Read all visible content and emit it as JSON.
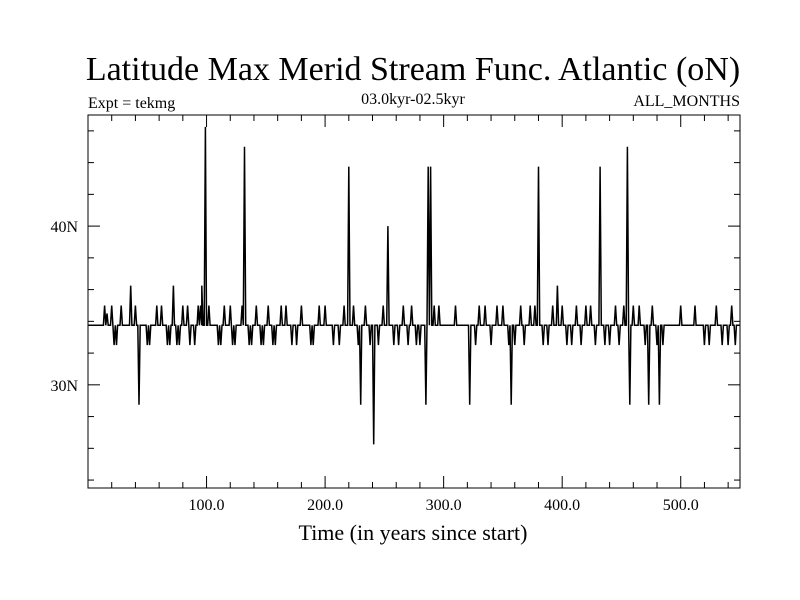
{
  "chart_data": {
    "type": "line",
    "title": "Latitude Max Merid Stream Func. Atlantic (oN)",
    "subtitle_left": "Expt = tekmg",
    "subtitle_center": "03.0kyr-02.5kyr",
    "subtitle_right": "ALL_MONTHS",
    "xlabel": "Time (in years since start)",
    "ylabel": "",
    "xlim": [
      0,
      550
    ],
    "ylim": [
      23.5,
      47
    ],
    "xticks": [
      100,
      200,
      300,
      400,
      500
    ],
    "xtick_labels": [
      "100.0",
      "200.0",
      "300.0",
      "400.0",
      "500.0"
    ],
    "yticks": [
      30,
      40
    ],
    "ytick_labels": [
      "30N",
      "40N"
    ],
    "grid": false,
    "baseline": 33.75,
    "series": [
      {
        "name": "",
        "events": [
          [
            14,
            35.0
          ],
          [
            16,
            34.5
          ],
          [
            20,
            35.0
          ],
          [
            22,
            32.5
          ],
          [
            24,
            32.5
          ],
          [
            28,
            35.0
          ],
          [
            36,
            36.25
          ],
          [
            40,
            35.0
          ],
          [
            43,
            28.75
          ],
          [
            50,
            32.5
          ],
          [
            52,
            32.5
          ],
          [
            58,
            35.0
          ],
          [
            62,
            35.0
          ],
          [
            67,
            32.5
          ],
          [
            69,
            32.5
          ],
          [
            72,
            36.25
          ],
          [
            75,
            32.5
          ],
          [
            77,
            32.5
          ],
          [
            80,
            35.0
          ],
          [
            84,
            35.0
          ],
          [
            86,
            32.5
          ],
          [
            90,
            32.5
          ],
          [
            93,
            35.0
          ],
          [
            95,
            35.0
          ],
          [
            96,
            36.25
          ],
          [
            99,
            46.25
          ],
          [
            102,
            35.0
          ],
          [
            110,
            32.5
          ],
          [
            112,
            32.5
          ],
          [
            115,
            35.0
          ],
          [
            120,
            35.0
          ],
          [
            122,
            32.5
          ],
          [
            124,
            32.5
          ],
          [
            130,
            35.0
          ],
          [
            132,
            45.0
          ],
          [
            136,
            32.5
          ],
          [
            138,
            32.5
          ],
          [
            142,
            35.0
          ],
          [
            146,
            32.5
          ],
          [
            148,
            32.5
          ],
          [
            152,
            35.0
          ],
          [
            156,
            32.5
          ],
          [
            158,
            32.5
          ],
          [
            163,
            35.0
          ],
          [
            167,
            35.0
          ],
          [
            172,
            32.5
          ],
          [
            176,
            32.5
          ],
          [
            180,
            35.0
          ],
          [
            188,
            32.5
          ],
          [
            190,
            32.5
          ],
          [
            195,
            35.0
          ],
          [
            200,
            35.0
          ],
          [
            207,
            32.5
          ],
          [
            212,
            32.5
          ],
          [
            216,
            35.0
          ],
          [
            220,
            43.75
          ],
          [
            224,
            35.0
          ],
          [
            228,
            32.5
          ],
          [
            230,
            28.75
          ],
          [
            234,
            35.0
          ],
          [
            238,
            32.5
          ],
          [
            241,
            26.25
          ],
          [
            245,
            32.5
          ],
          [
            249,
            35.0
          ],
          [
            253,
            40.0
          ],
          [
            258,
            32.5
          ],
          [
            262,
            32.5
          ],
          [
            266,
            35.0
          ],
          [
            270,
            32.5
          ],
          [
            273,
            35.0
          ],
          [
            277,
            32.5
          ],
          [
            280,
            32.5
          ],
          [
            285,
            28.75
          ],
          [
            287,
            43.75
          ],
          [
            289,
            43.75
          ],
          [
            292,
            35.0
          ],
          [
            296,
            35.0
          ],
          [
            310,
            35.0
          ],
          [
            322,
            28.75
          ],
          [
            327,
            32.5
          ],
          [
            330,
            35.0
          ],
          [
            335,
            35.0
          ],
          [
            340,
            32.5
          ],
          [
            345,
            35.0
          ],
          [
            350,
            35.0
          ],
          [
            355,
            32.5
          ],
          [
            357,
            28.75
          ],
          [
            360,
            32.5
          ],
          [
            365,
            35.0
          ],
          [
            368,
            32.5
          ],
          [
            373,
            35.0
          ],
          [
            377,
            35.0
          ],
          [
            380,
            43.75
          ],
          [
            384,
            32.5
          ],
          [
            388,
            32.5
          ],
          [
            392,
            35.0
          ],
          [
            396,
            36.25
          ],
          [
            400,
            35.0
          ],
          [
            404,
            32.5
          ],
          [
            408,
            32.5
          ],
          [
            412,
            35.0
          ],
          [
            416,
            32.5
          ],
          [
            420,
            35.0
          ],
          [
            424,
            35.0
          ],
          [
            428,
            32.5
          ],
          [
            432,
            43.75
          ],
          [
            436,
            32.5
          ],
          [
            440,
            32.5
          ],
          [
            445,
            35.0
          ],
          [
            448,
            32.5
          ],
          [
            452,
            35.0
          ],
          [
            455,
            45.0
          ],
          [
            457,
            28.75
          ],
          [
            460,
            35.0
          ],
          [
            465,
            35.0
          ],
          [
            470,
            32.5
          ],
          [
            473,
            28.75
          ],
          [
            476,
            35.0
          ],
          [
            480,
            32.5
          ],
          [
            482,
            28.75
          ],
          [
            485,
            32.5
          ],
          [
            500,
            35.0
          ],
          [
            512,
            35.0
          ],
          [
            520,
            32.5
          ],
          [
            524,
            32.5
          ],
          [
            530,
            35.0
          ],
          [
            535,
            32.5
          ],
          [
            540,
            32.5
          ],
          [
            543,
            35.0
          ],
          [
            546,
            32.5
          ]
        ]
      }
    ]
  }
}
